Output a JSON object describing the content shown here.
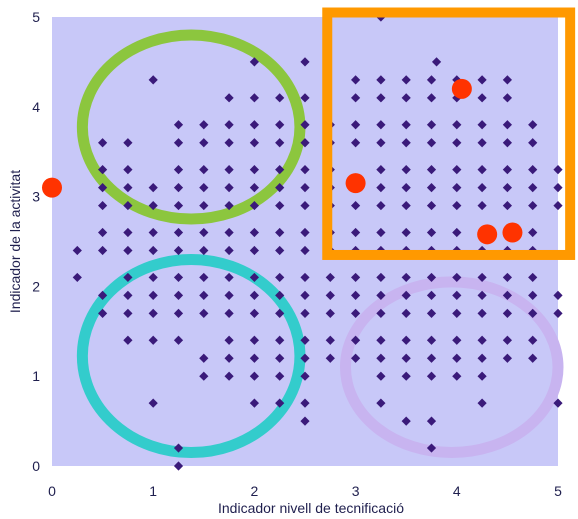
{
  "chart_data": {
    "type": "scatter",
    "xlabel": "Indicador nivell de tecnificació",
    "ylabel": "Indicador de la activitat",
    "xlim": [
      0,
      5
    ],
    "ylim": [
      0,
      5
    ],
    "xticks": [
      "0",
      "1",
      "2",
      "3",
      "4",
      "5"
    ],
    "yticks": [
      "0",
      "1",
      "2",
      "3",
      "4",
      "5"
    ],
    "grid": false,
    "colors": {
      "plot_bg": "#c8c8f8",
      "point": "#3a1a7a",
      "highlight": "#ff3300",
      "green_ellipse": "#8cc63e",
      "cyan_ellipse": "#33cccc",
      "lavender_ellipse": "#c8b4f0",
      "orange_rect": "#ff9900"
    },
    "series": [
      {
        "marker": "diamond",
        "points": [
          [
            3.25,
            5.0
          ],
          [
            3.8,
            4.5
          ],
          [
            1.0,
            4.3
          ],
          [
            2.0,
            4.5
          ],
          [
            2.5,
            4.5
          ],
          [
            3.0,
            4.3
          ],
          [
            3.25,
            4.3
          ],
          [
            3.5,
            4.3
          ],
          [
            3.75,
            4.3
          ],
          [
            4.0,
            4.3
          ],
          [
            4.25,
            4.3
          ],
          [
            4.5,
            4.3
          ],
          [
            1.75,
            4.1
          ],
          [
            2.0,
            4.1
          ],
          [
            2.25,
            4.1
          ],
          [
            2.5,
            4.1
          ],
          [
            3.0,
            4.1
          ],
          [
            3.25,
            4.1
          ],
          [
            3.5,
            4.1
          ],
          [
            3.75,
            4.1
          ],
          [
            4.0,
            4.1
          ],
          [
            4.25,
            4.1
          ],
          [
            4.5,
            4.1
          ],
          [
            1.25,
            3.8
          ],
          [
            1.5,
            3.8
          ],
          [
            1.75,
            3.8
          ],
          [
            2.0,
            3.8
          ],
          [
            2.25,
            3.8
          ],
          [
            2.5,
            3.8
          ],
          [
            2.75,
            3.8
          ],
          [
            3.0,
            3.8
          ],
          [
            3.25,
            3.8
          ],
          [
            3.5,
            3.8
          ],
          [
            3.75,
            3.8
          ],
          [
            4.0,
            3.8
          ],
          [
            4.25,
            3.8
          ],
          [
            4.5,
            3.8
          ],
          [
            4.75,
            3.8
          ],
          [
            0.5,
            3.6
          ],
          [
            0.75,
            3.6
          ],
          [
            1.25,
            3.6
          ],
          [
            1.5,
            3.6
          ],
          [
            1.75,
            3.6
          ],
          [
            2.0,
            3.6
          ],
          [
            2.25,
            3.6
          ],
          [
            2.5,
            3.6
          ],
          [
            2.75,
            3.6
          ],
          [
            3.0,
            3.6
          ],
          [
            3.25,
            3.6
          ],
          [
            3.5,
            3.6
          ],
          [
            3.75,
            3.6
          ],
          [
            4.0,
            3.6
          ],
          [
            4.25,
            3.6
          ],
          [
            4.5,
            3.6
          ],
          [
            4.75,
            3.6
          ],
          [
            0.5,
            3.3
          ],
          [
            0.75,
            3.3
          ],
          [
            1.25,
            3.3
          ],
          [
            1.5,
            3.3
          ],
          [
            1.75,
            3.3
          ],
          [
            2.0,
            3.3
          ],
          [
            2.25,
            3.3
          ],
          [
            2.5,
            3.3
          ],
          [
            2.75,
            3.3
          ],
          [
            3.25,
            3.3
          ],
          [
            3.5,
            3.3
          ],
          [
            3.75,
            3.3
          ],
          [
            4.0,
            3.3
          ],
          [
            4.25,
            3.3
          ],
          [
            4.5,
            3.3
          ],
          [
            4.75,
            3.3
          ],
          [
            5.0,
            3.3
          ],
          [
            0.5,
            3.1
          ],
          [
            0.75,
            3.1
          ],
          [
            1.0,
            3.1
          ],
          [
            1.25,
            3.1
          ],
          [
            1.5,
            3.1
          ],
          [
            1.75,
            3.1
          ],
          [
            2.0,
            3.1
          ],
          [
            2.25,
            3.1
          ],
          [
            2.5,
            3.1
          ],
          [
            2.75,
            3.1
          ],
          [
            3.25,
            3.1
          ],
          [
            3.5,
            3.1
          ],
          [
            3.75,
            3.1
          ],
          [
            4.0,
            3.1
          ],
          [
            4.25,
            3.1
          ],
          [
            4.5,
            3.1
          ],
          [
            4.75,
            3.1
          ],
          [
            5.0,
            3.1
          ],
          [
            0.5,
            2.9
          ],
          [
            0.75,
            2.9
          ],
          [
            1.0,
            2.9
          ],
          [
            1.25,
            2.9
          ],
          [
            1.5,
            2.9
          ],
          [
            1.75,
            2.9
          ],
          [
            2.0,
            2.9
          ],
          [
            2.25,
            2.9
          ],
          [
            2.5,
            2.9
          ],
          [
            2.75,
            2.9
          ],
          [
            3.0,
            2.9
          ],
          [
            3.25,
            2.9
          ],
          [
            3.5,
            2.9
          ],
          [
            3.75,
            2.9
          ],
          [
            4.0,
            2.9
          ],
          [
            4.25,
            2.9
          ],
          [
            4.5,
            2.9
          ],
          [
            4.75,
            2.9
          ],
          [
            5.0,
            2.9
          ],
          [
            0.5,
            2.6
          ],
          [
            0.75,
            2.6
          ],
          [
            1.0,
            2.6
          ],
          [
            1.25,
            2.6
          ],
          [
            1.5,
            2.6
          ],
          [
            1.75,
            2.6
          ],
          [
            2.0,
            2.6
          ],
          [
            2.25,
            2.6
          ],
          [
            2.5,
            2.6
          ],
          [
            2.75,
            2.6
          ],
          [
            3.0,
            2.6
          ],
          [
            3.25,
            2.6
          ],
          [
            3.5,
            2.6
          ],
          [
            3.75,
            2.6
          ],
          [
            4.0,
            2.6
          ],
          [
            4.25,
            2.6
          ],
          [
            4.75,
            2.6
          ],
          [
            0.25,
            2.4
          ],
          [
            0.5,
            2.4
          ],
          [
            0.75,
            2.4
          ],
          [
            1.0,
            2.4
          ],
          [
            1.25,
            2.4
          ],
          [
            1.5,
            2.4
          ],
          [
            1.75,
            2.4
          ],
          [
            2.0,
            2.4
          ],
          [
            2.25,
            2.4
          ],
          [
            2.5,
            2.4
          ],
          [
            2.75,
            2.4
          ],
          [
            3.0,
            2.4
          ],
          [
            3.25,
            2.4
          ],
          [
            3.5,
            2.4
          ],
          [
            3.75,
            2.4
          ],
          [
            4.0,
            2.4
          ],
          [
            4.25,
            2.4
          ],
          [
            4.5,
            2.4
          ],
          [
            4.75,
            2.4
          ],
          [
            0.25,
            2.1
          ],
          [
            0.75,
            2.1
          ],
          [
            1.0,
            2.1
          ],
          [
            1.25,
            2.1
          ],
          [
            1.5,
            2.1
          ],
          [
            1.75,
            2.1
          ],
          [
            2.0,
            2.1
          ],
          [
            2.25,
            2.1
          ],
          [
            2.5,
            2.1
          ],
          [
            2.75,
            2.1
          ],
          [
            3.0,
            2.1
          ],
          [
            3.25,
            2.1
          ],
          [
            3.5,
            2.1
          ],
          [
            3.75,
            2.1
          ],
          [
            4.0,
            2.1
          ],
          [
            4.25,
            2.1
          ],
          [
            4.5,
            2.1
          ],
          [
            4.75,
            2.1
          ],
          [
            0.5,
            1.9
          ],
          [
            0.75,
            1.9
          ],
          [
            1.0,
            1.9
          ],
          [
            1.25,
            1.9
          ],
          [
            1.5,
            1.9
          ],
          [
            1.75,
            1.9
          ],
          [
            2.0,
            1.9
          ],
          [
            2.25,
            1.9
          ],
          [
            2.5,
            1.9
          ],
          [
            2.75,
            1.9
          ],
          [
            3.0,
            1.9
          ],
          [
            3.25,
            1.9
          ],
          [
            3.5,
            1.9
          ],
          [
            3.75,
            1.9
          ],
          [
            4.0,
            1.9
          ],
          [
            4.25,
            1.9
          ],
          [
            4.5,
            1.9
          ],
          [
            4.75,
            1.9
          ],
          [
            5.0,
            1.9
          ],
          [
            0.5,
            1.7
          ],
          [
            0.75,
            1.7
          ],
          [
            1.0,
            1.7
          ],
          [
            1.25,
            1.7
          ],
          [
            1.5,
            1.7
          ],
          [
            1.75,
            1.7
          ],
          [
            2.0,
            1.7
          ],
          [
            2.25,
            1.7
          ],
          [
            2.5,
            1.7
          ],
          [
            2.75,
            1.7
          ],
          [
            3.0,
            1.7
          ],
          [
            3.25,
            1.7
          ],
          [
            3.5,
            1.7
          ],
          [
            3.75,
            1.7
          ],
          [
            4.0,
            1.7
          ],
          [
            4.25,
            1.7
          ],
          [
            4.5,
            1.7
          ],
          [
            4.75,
            1.7
          ],
          [
            5.0,
            1.7
          ],
          [
            0.75,
            1.4
          ],
          [
            1.0,
            1.4
          ],
          [
            1.25,
            1.4
          ],
          [
            1.75,
            1.4
          ],
          [
            2.0,
            1.4
          ],
          [
            2.25,
            1.4
          ],
          [
            2.5,
            1.4
          ],
          [
            2.75,
            1.4
          ],
          [
            3.0,
            1.4
          ],
          [
            3.25,
            1.4
          ],
          [
            3.5,
            1.4
          ],
          [
            3.75,
            1.4
          ],
          [
            4.0,
            1.4
          ],
          [
            4.25,
            1.4
          ],
          [
            4.5,
            1.4
          ],
          [
            4.75,
            1.4
          ],
          [
            1.5,
            1.2
          ],
          [
            1.75,
            1.2
          ],
          [
            2.0,
            1.2
          ],
          [
            2.25,
            1.2
          ],
          [
            2.5,
            1.2
          ],
          [
            2.75,
            1.2
          ],
          [
            3.0,
            1.2
          ],
          [
            3.25,
            1.2
          ],
          [
            3.5,
            1.2
          ],
          [
            3.75,
            1.2
          ],
          [
            4.0,
            1.2
          ],
          [
            4.25,
            1.2
          ],
          [
            4.5,
            1.2
          ],
          [
            4.75,
            1.2
          ],
          [
            1.5,
            1.0
          ],
          [
            1.75,
            1.0
          ],
          [
            2.0,
            1.0
          ],
          [
            2.25,
            1.0
          ],
          [
            2.5,
            1.0
          ],
          [
            3.25,
            1.0
          ],
          [
            3.5,
            1.0
          ],
          [
            3.75,
            1.0
          ],
          [
            4.0,
            1.0
          ],
          [
            4.25,
            1.0
          ],
          [
            1.0,
            0.7
          ],
          [
            2.0,
            0.7
          ],
          [
            2.25,
            0.7
          ],
          [
            2.5,
            0.7
          ],
          [
            3.25,
            0.7
          ],
          [
            4.25,
            0.7
          ],
          [
            5.0,
            0.7
          ],
          [
            2.5,
            0.5
          ],
          [
            3.5,
            0.5
          ],
          [
            3.75,
            0.5
          ],
          [
            1.25,
            0.2
          ],
          [
            3.75,
            0.2
          ],
          [
            1.25,
            0.0
          ]
        ]
      },
      {
        "marker": "circle",
        "highlighted": true,
        "points": [
          [
            0.0,
            3.1
          ],
          [
            3.0,
            3.15
          ],
          [
            4.05,
            4.2
          ],
          [
            4.3,
            2.58
          ],
          [
            4.55,
            2.6
          ]
        ]
      }
    ],
    "annotations": [
      {
        "shape": "ellipse",
        "color": "green",
        "x_range": [
          0.3,
          2.45
        ],
        "y_range": [
          2.75,
          4.8
        ]
      },
      {
        "shape": "ellipse",
        "color": "cyan",
        "x_range": [
          0.3,
          2.45
        ],
        "y_range": [
          0.15,
          2.3
        ]
      },
      {
        "shape": "ellipse",
        "color": "lavender",
        "x_range": [
          2.9,
          5.0
        ],
        "y_range": [
          0.15,
          2.05
        ]
      },
      {
        "shape": "rectangle",
        "color": "orange",
        "x_range": [
          2.72,
          5.12
        ],
        "y_range": [
          2.35,
          5.05
        ]
      }
    ]
  }
}
